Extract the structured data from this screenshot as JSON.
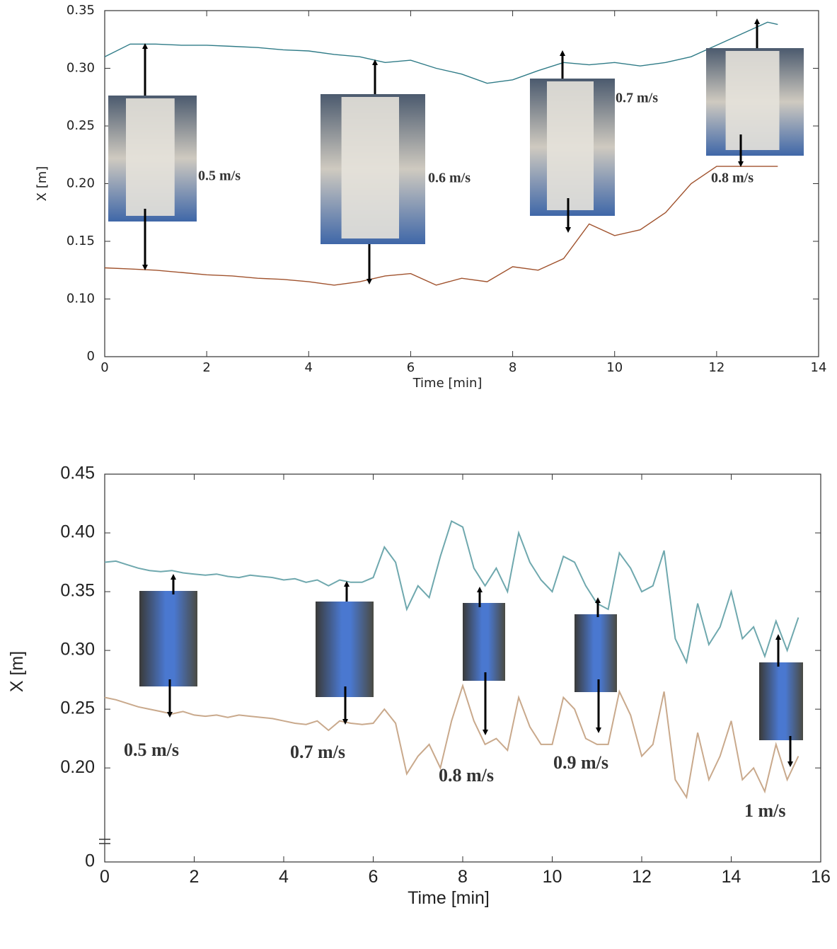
{
  "chart_data": [
    {
      "type": "line",
      "xlabel": "Time [min]",
      "ylabel": "X [m]",
      "x": [
        0,
        0.5,
        1,
        1.5,
        2,
        2.5,
        3,
        3.5,
        4,
        4.5,
        5,
        5.5,
        6,
        6.5,
        7,
        7.5,
        8,
        8.5,
        9,
        9.5,
        10,
        10.5,
        11,
        11.5,
        12,
        12.5,
        13,
        13.2
      ],
      "series": [
        {
          "color": "#2f7b87",
          "values": [
            0.31,
            0.321,
            0.321,
            0.32,
            0.32,
            0.319,
            0.318,
            0.316,
            0.315,
            0.312,
            0.31,
            0.305,
            0.307,
            0.3,
            0.295,
            0.287,
            0.29,
            0.298,
            0.305,
            0.303,
            0.305,
            0.302,
            0.305,
            0.31,
            0.32,
            0.33,
            0.34,
            0.338
          ]
        },
        {
          "color": "#a0522d",
          "values": [
            0.127,
            0.126,
            0.125,
            0.123,
            0.121,
            0.12,
            0.118,
            0.117,
            0.115,
            0.112,
            0.115,
            0.12,
            0.122,
            0.112,
            0.118,
            0.115,
            0.128,
            0.125,
            0.135,
            0.165,
            0.155,
            0.16,
            0.175,
            0.2,
            0.215,
            0.215,
            0.215,
            0.215
          ]
        }
      ],
      "xlim": [
        0,
        14
      ],
      "xticks": [
        0,
        2,
        4,
        6,
        8,
        10,
        12,
        14
      ],
      "ylim": [
        0,
        0.35
      ],
      "ybreak": [
        0,
        0.05
      ],
      "yticks": [
        0,
        {
          "value": 0.1,
          "label": "0.10"
        },
        0.15,
        {
          "value": 0.2,
          "label": "0.20"
        },
        0.25,
        {
          "value": 0.3,
          "label": "0.30"
        },
        0.35
      ],
      "annotations": [
        "0.5 m/s",
        "0.6 m/s",
        "0.7 m/s",
        "0.8 m/s"
      ]
    },
    {
      "type": "line",
      "xlabel": "Time [min]",
      "ylabel": "X [m]",
      "x": [
        0,
        0.25,
        0.5,
        0.75,
        1,
        1.25,
        1.5,
        1.75,
        2,
        2.25,
        2.5,
        2.75,
        3,
        3.25,
        3.5,
        3.75,
        4,
        4.25,
        4.5,
        4.75,
        5,
        5.25,
        5.5,
        5.75,
        6,
        6.25,
        6.5,
        6.75,
        7,
        7.25,
        7.5,
        7.75,
        8,
        8.25,
        8.5,
        8.75,
        9,
        9.25,
        9.5,
        9.75,
        10,
        10.25,
        10.5,
        10.75,
        11,
        11.25,
        11.5,
        11.75,
        12,
        12.25,
        12.5,
        12.75,
        13,
        13.25,
        13.5,
        13.75,
        14,
        14.25,
        14.5,
        14.75,
        15,
        15.25,
        15.5
      ],
      "series": [
        {
          "color": "#6fa8ae",
          "values": [
            0.375,
            0.376,
            0.373,
            0.37,
            0.368,
            0.367,
            0.368,
            0.366,
            0.365,
            0.364,
            0.365,
            0.363,
            0.362,
            0.364,
            0.363,
            0.362,
            0.36,
            0.361,
            0.358,
            0.36,
            0.355,
            0.36,
            0.358,
            0.358,
            0.362,
            0.388,
            0.375,
            0.335,
            0.355,
            0.345,
            0.38,
            0.41,
            0.405,
            0.37,
            0.355,
            0.37,
            0.35,
            0.4,
            0.375,
            0.36,
            0.35,
            0.38,
            0.375,
            0.355,
            0.34,
            0.335,
            0.383,
            0.37,
            0.35,
            0.355,
            0.385,
            0.31,
            0.29,
            0.34,
            0.305,
            0.32,
            0.35,
            0.31,
            0.32,
            0.295,
            0.325,
            0.3,
            0.328
          ]
        },
        {
          "color": "#c9a98c",
          "values": [
            0.26,
            0.258,
            0.255,
            0.252,
            0.25,
            0.248,
            0.246,
            0.248,
            0.245,
            0.244,
            0.245,
            0.243,
            0.245,
            0.244,
            0.243,
            0.242,
            0.24,
            0.238,
            0.237,
            0.24,
            0.232,
            0.24,
            0.238,
            0.237,
            0.238,
            0.25,
            0.238,
            0.195,
            0.21,
            0.22,
            0.2,
            0.24,
            0.27,
            0.24,
            0.22,
            0.225,
            0.215,
            0.26,
            0.235,
            0.22,
            0.22,
            0.26,
            0.25,
            0.225,
            0.22,
            0.22,
            0.265,
            0.245,
            0.21,
            0.22,
            0.265,
            0.19,
            0.175,
            0.23,
            0.19,
            0.21,
            0.24,
            0.19,
            0.2,
            0.18,
            0.22,
            0.19,
            0.21
          ]
        }
      ],
      "xlim": [
        0,
        16
      ],
      "xticks": [
        0,
        2,
        4,
        6,
        8,
        10,
        12,
        14,
        16
      ],
      "ylim": [
        0,
        0.45
      ],
      "ybreak": [
        0,
        0.12
      ],
      "yticks": [
        0,
        {
          "value": 0.2,
          "label": "0.20"
        },
        0.25,
        {
          "value": 0.3,
          "label": "0.30"
        },
        0.35,
        {
          "value": 0.4,
          "label": "0.40"
        },
        0.45
      ],
      "annotations": [
        "0.5 m/s",
        "0.7 m/s",
        "0.8 m/s",
        "0.9 m/s",
        "1 m/s"
      ]
    }
  ]
}
